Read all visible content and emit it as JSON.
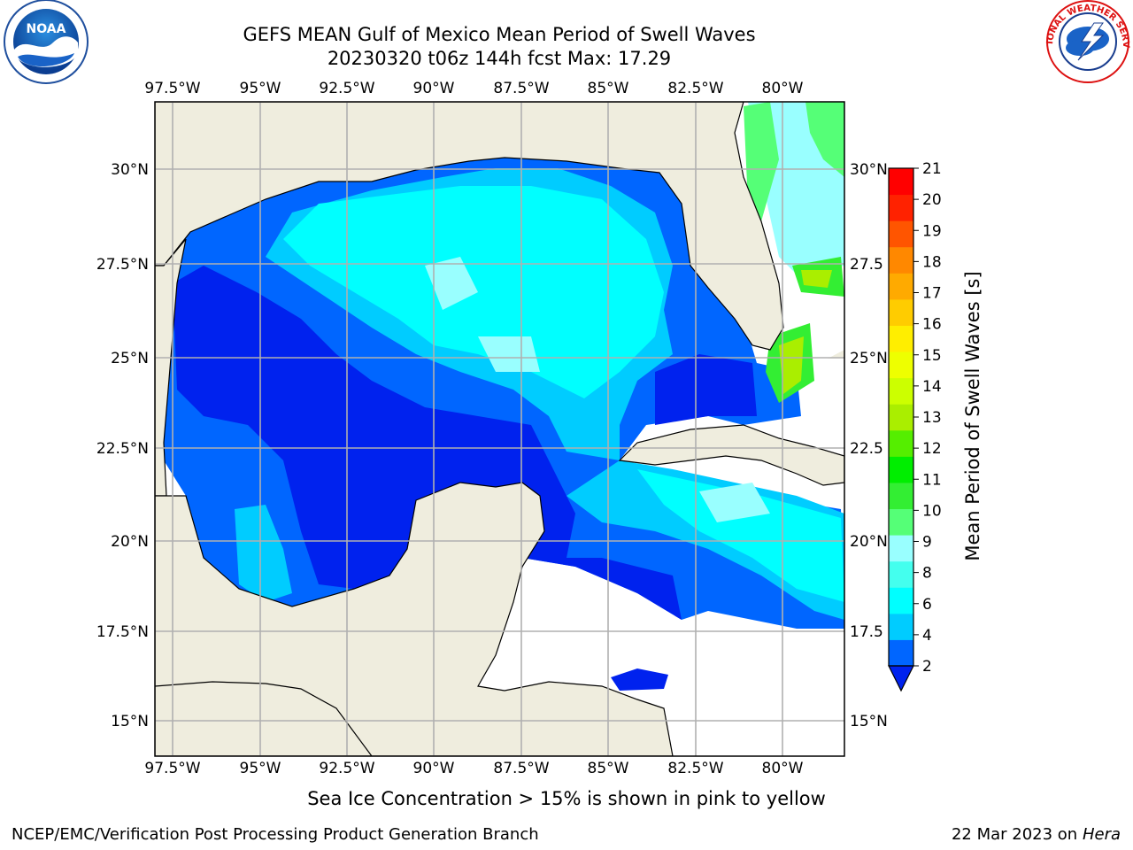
{
  "title_line1": "GEFS MEAN Gulf of Mexico Mean Period of Swell Waves",
  "title_line2": "20230320 t06z 144h fcst   Max: 17.29",
  "bottom_note": "Sea Ice Concentration > 15% is shown in pink to yellow",
  "footer_left": "NCEP/EMC/Verification Post Processing Product Generation Branch",
  "footer_date": "22 Mar 2023 on",
  "footer_host": "Hera",
  "logos": {
    "left": "noaa-logo",
    "right": "national-weather-service-logo",
    "nws_ring_text": "NATIONAL WEATHER SERVICE"
  },
  "map": {
    "lon_ticks": [
      "97.5°W",
      "95°W",
      "92.5°W",
      "90°W",
      "87.5°W",
      "85°W",
      "82.5°W",
      "80°W"
    ],
    "lat_ticks": [
      "30°N",
      "27.5°N",
      "25°N",
      "22.5°N",
      "20°N",
      "17.5°N",
      "15°N"
    ],
    "lat_ticks_right": [
      "30°N",
      "27.5",
      "25°N",
      "22.5",
      "20°N",
      "17.5",
      "15°N"
    ],
    "land_color": "#efedde",
    "grid_color": "#b0b0b0"
  },
  "colorbar": {
    "label": "Mean Period of Swell Waves [s]",
    "ticks": [
      "2",
      "4",
      "6",
      "8",
      "9",
      "10",
      "11",
      "12",
      "13",
      "14",
      "15",
      "16",
      "17",
      "18",
      "19",
      "20",
      "21"
    ],
    "colors": [
      "#0066ff",
      "#00ccff",
      "#00ffff",
      "#44ffee",
      "#99ffff",
      "#55ff77",
      "#33ee33",
      "#00ee00",
      "#55ee00",
      "#aaee00",
      "#ccff00",
      "#eeff00",
      "#ffee00",
      "#ffcc00",
      "#ffaa00",
      "#ff8800",
      "#ff5500",
      "#ff2200",
      "#ff0000"
    ],
    "under_color": "#0022ee"
  }
}
